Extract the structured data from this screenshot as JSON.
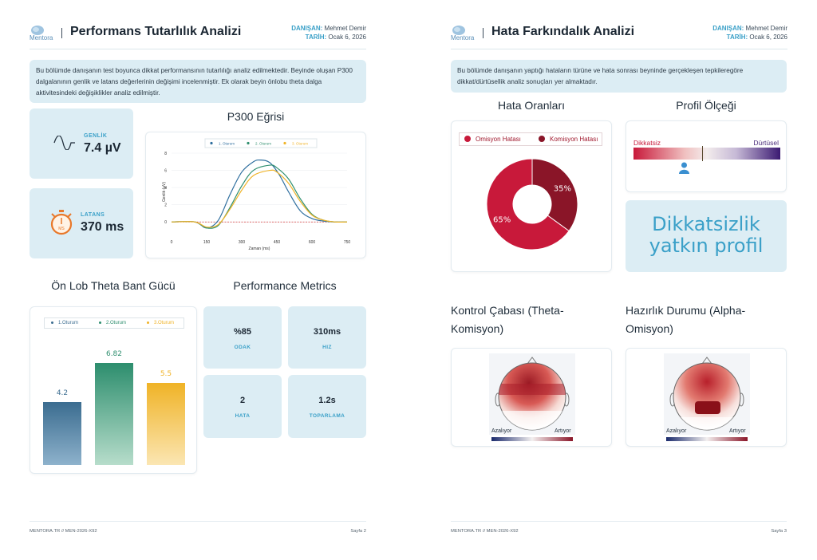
{
  "colors": {
    "accent": "#3aa0c8",
    "tile_bg": "#dcedf4",
    "session1": "#2e6e9e",
    "session2": "#2f8f6f",
    "session3": "#f0b429",
    "omission": "#c8193a",
    "commission": "#8a1528"
  },
  "left": {
    "logo_text": "Mentora",
    "title": "Performans Tutarlılık Analizi",
    "client_label": "DANIŞAN:",
    "client_name": "Mehmet Demir",
    "date_label": "TARİH:",
    "date_value": "Ocak 6, 2026",
    "intro": "Bu bölümde danışanın test boyunca dikkat performansının tutarlılığı analiz edilmektedir. Beyinde oluşan P300 dalgalanının genlik ve latans değerlerinin değişimi incelenmiştir. Ek olarak beyin önlobu theta dalga aktivitesindeki değişiklikler analiz edilmiştir.",
    "amplitude": {
      "label": "GENLİK",
      "value": "7.4 µV",
      "icon": "wave-icon"
    },
    "latency": {
      "label": "LATANS",
      "value": "370 ms",
      "icon": "stopwatch-icon",
      "icon_text": "MS"
    },
    "p300_title": "P300 Eğrisi",
    "theta_title": "Ön Lob Theta Bant Gücü",
    "metrics_title": "Performance Metrics",
    "metrics": [
      {
        "value": "%85",
        "label": "ODAK"
      },
      {
        "value": "310ms",
        "label": "HIZ"
      },
      {
        "value": "2",
        "label": "HATA"
      },
      {
        "value": "1.2s",
        "label": "TOPARLAMA"
      }
    ],
    "footer_left": "MENTORA.TR // MEN-2026-X92",
    "footer_right": "Sayfa 2"
  },
  "right": {
    "logo_text": "Mentora",
    "title": "Hata Farkındalık Analizi",
    "client_label": "DANIŞAN:",
    "client_name": "Mehmet Demir",
    "date_label": "TARİH:",
    "date_value": "Ocak 6, 2026",
    "intro": "Bu bölümde danışanın yaptığı hataların türüne ve hata sonrası beyninde gerçekleşen tepkileregöre dikkat/dürtüsellik analiz sonuçları yer almaktadır.",
    "error_rates_title": "Hata Oranları",
    "profile_scale_title": "Profil Ölçeği",
    "scale_left": "Dikkatsiz",
    "scale_right": "Dürtüsel",
    "scale_marker": 0.34,
    "scale_needle": 0.47,
    "profile_result": "Dikkatsizlik yatkın profil",
    "control_title": "Kontrol Çabası (Theta-Komisyon)",
    "readiness_title": "Hazırlık Durumu (Alpha-Omisyon)",
    "decrease": "Azalıyor",
    "increase": "Artıyor",
    "footer_left": "MENTORA.TR // MEN-2026-X92",
    "footer_right": "Sayfa 3",
    "person_icon": "person-icon"
  },
  "chart_data": [
    {
      "type": "line",
      "title": "P300 Eğrisi",
      "xlabel": "Zaman (ms)",
      "ylabel": "Genlik (µV)",
      "xlim": [
        0,
        750
      ],
      "ylim": [
        -1,
        8
      ],
      "x_ticks": [
        0,
        150,
        300,
        450,
        600,
        750
      ],
      "y_ticks": [
        0,
        2,
        4,
        6,
        8
      ],
      "baseline": 0,
      "legend": "top-center",
      "series": [
        {
          "name": "1. Oturum",
          "x": [
            0,
            100,
            150,
            200,
            250,
            300,
            350,
            380,
            420,
            460,
            500,
            550,
            600,
            650,
            700,
            750
          ],
          "y": [
            0,
            0,
            -0.7,
            0.2,
            3.2,
            5.8,
            7.0,
            7.2,
            6.9,
            5.5,
            3.5,
            1.3,
            0.4,
            0.1,
            0,
            0
          ]
        },
        {
          "name": "2. Oturum",
          "x": [
            0,
            100,
            150,
            200,
            250,
            300,
            350,
            420,
            450,
            500,
            550,
            600,
            650,
            700,
            750
          ],
          "y": [
            0,
            0,
            -0.7,
            -0.4,
            1.7,
            4.2,
            6.0,
            6.6,
            6.3,
            5.0,
            2.7,
            0.9,
            0.2,
            0,
            0
          ]
        },
        {
          "name": "3. Oturum",
          "x": [
            0,
            100,
            150,
            200,
            250,
            300,
            350,
            420,
            450,
            500,
            550,
            600,
            650,
            700,
            750
          ],
          "y": [
            0,
            0,
            -0.6,
            -0.3,
            1.5,
            3.7,
            5.4,
            6.0,
            5.8,
            4.5,
            2.4,
            0.8,
            0.2,
            0,
            0
          ]
        }
      ]
    },
    {
      "type": "bar",
      "title": "Ön Lob Theta Bant Gücü",
      "categories": [
        "1.Oturum",
        "2.Oturum",
        "3.Oturum"
      ],
      "values": [
        4.2,
        6.82,
        5.5
      ],
      "ylim": [
        0,
        7.5
      ],
      "legend": "top-center"
    },
    {
      "type": "pie",
      "title": "Hata Oranları",
      "categories": [
        "Omisyon Hatası",
        "Komisyon Hatası"
      ],
      "values": [
        65,
        35
      ],
      "labels": [
        "65%",
        "35%"
      ],
      "legend": "top"
    }
  ]
}
